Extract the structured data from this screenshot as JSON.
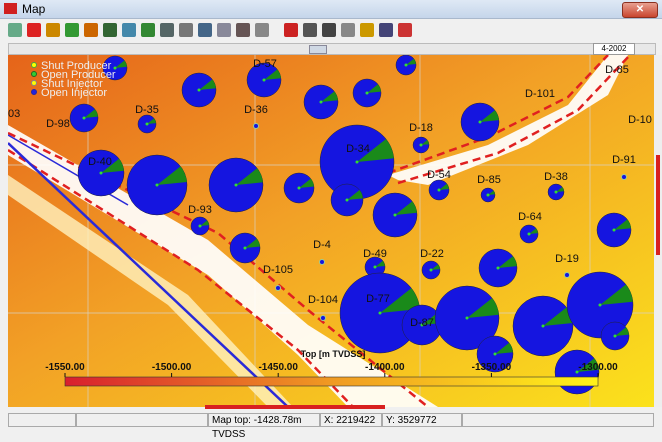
{
  "window": {
    "title": "Map",
    "date": "4-2002"
  },
  "legend": [
    "Shut Producer",
    "Open Producer",
    "Shut Injector",
    "Open Injector"
  ],
  "wells": [
    "D-98",
    "D-35",
    "D-36",
    "D-57",
    "D-34",
    "D-40",
    "D-18",
    "D-101",
    "D-85",
    "D-10",
    "D-91",
    "D-54",
    "D-85",
    "D-38",
    "D-64",
    "D-93",
    "D-4",
    "D-49",
    "D-22",
    "D-19",
    "D-105",
    "D-104",
    "D-77",
    "D-87",
    "03"
  ],
  "colorbar": {
    "title": "Top [m TVDSS]",
    "ticks": [
      {
        "value": -1550,
        "label": "-1550.00"
      },
      {
        "value": -1500,
        "label": "-1500.00"
      },
      {
        "value": -1450,
        "label": "-1450.00"
      },
      {
        "value": -1400,
        "label": "-1400.00"
      },
      {
        "value": -1350,
        "label": "-1350.00"
      },
      {
        "value": -1300,
        "label": "-1300.00"
      }
    ]
  },
  "status": {
    "map_top": "Map top: -1428.78m TVDSS",
    "x": "X: 2219422",
    "y": "Y: 3529772"
  }
}
